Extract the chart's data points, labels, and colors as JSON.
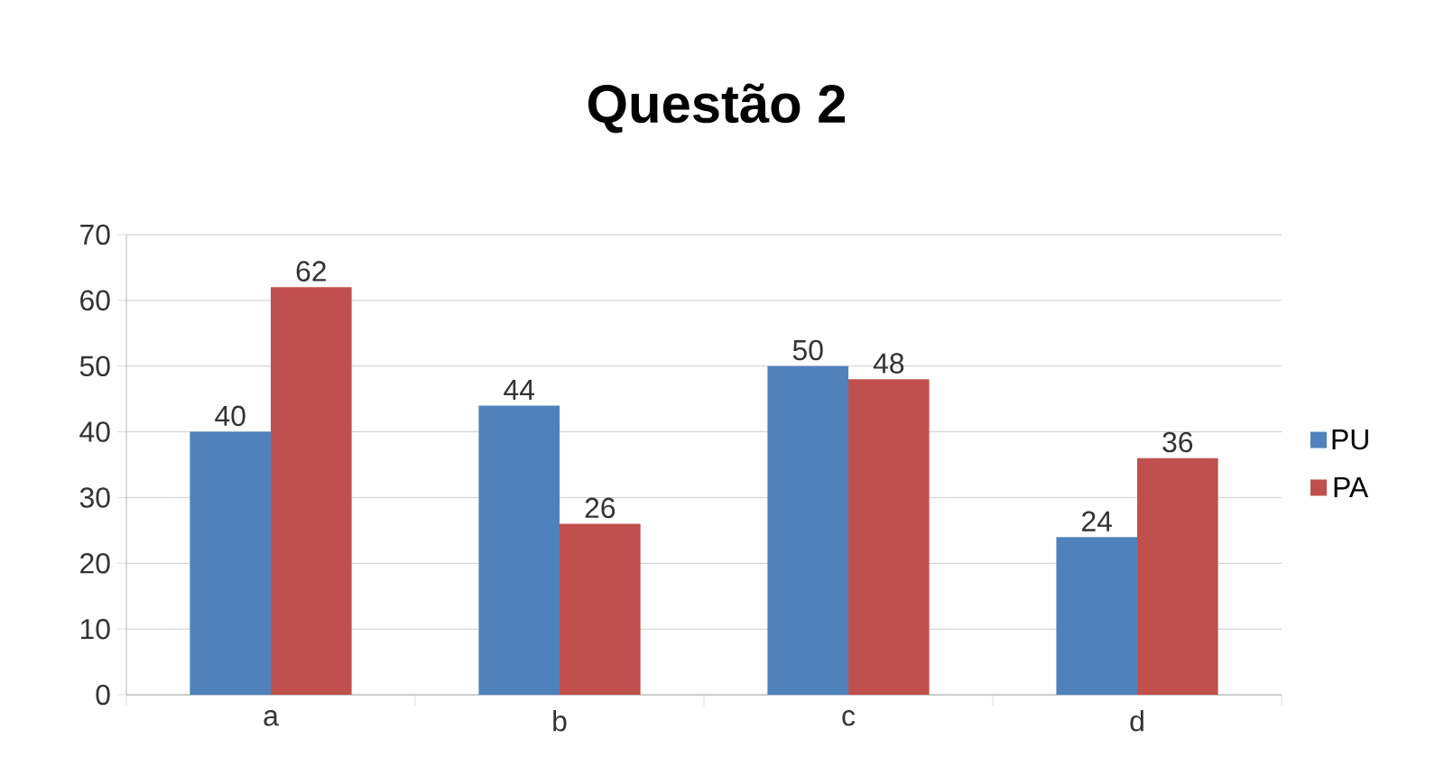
{
  "chart_data": {
    "type": "bar",
    "title": "Questão 2",
    "categories": [
      "a",
      "b",
      "c",
      "d"
    ],
    "series": [
      {
        "name": "PU",
        "color": "#4f81bd",
        "values": [
          40,
          44,
          50,
          24
        ]
      },
      {
        "name": "PA",
        "color": "#c0504d",
        "values": [
          62,
          26,
          48,
          36
        ]
      }
    ],
    "ylim": [
      0,
      70
    ],
    "yticks": [
      0,
      10,
      20,
      30,
      40,
      50,
      60,
      70
    ],
    "grid": "y",
    "legend": "right",
    "data_labels": true
  }
}
